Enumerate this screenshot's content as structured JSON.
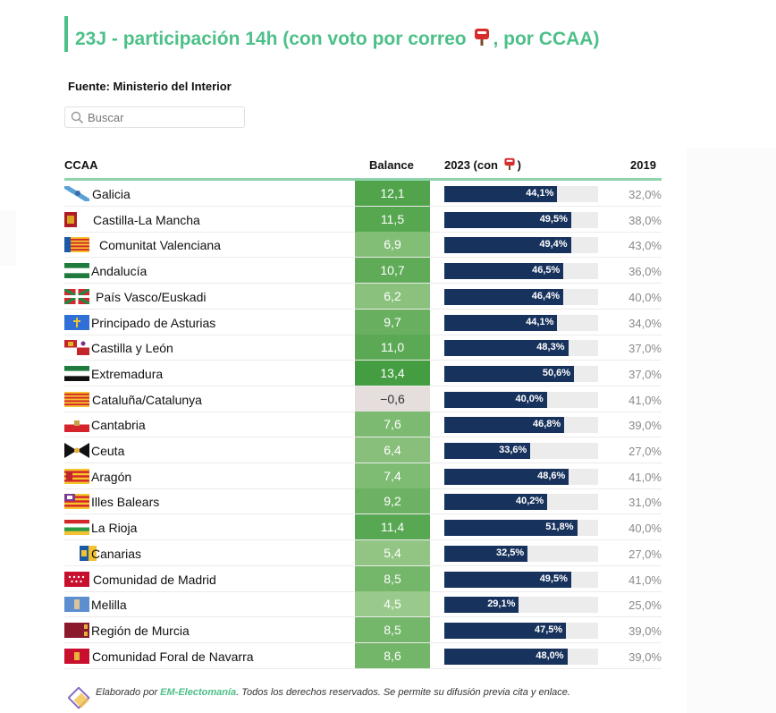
{
  "title": "23J - participación 14h (con voto por correo",
  "title_suffix": ", por CCAA)",
  "source": "Fuente: Ministerio del Interior",
  "search": {
    "placeholder": "Buscar"
  },
  "headers": {
    "ccaa": "CCAA",
    "balance": "Balance",
    "y2023": "2023 (con",
    "y2023_close": ")",
    "y2019": "2019"
  },
  "footer": {
    "prefix": "Elaborado por ",
    "brand": "EM-Electomanía",
    "suffix": ". Todos los derechos reservados. Se permite su difusión previa cita y enlace."
  },
  "colors": {
    "accent": "#4dc089",
    "bar": "#17325c",
    "track": "#ececec",
    "balance_high": "#3f9a3c",
    "balance_low": "#9fcc8f",
    "balance_negative": "#e6dddd"
  },
  "chart_data": {
    "type": "table",
    "columns": [
      "CCAA",
      "Balance",
      "2023 (con voto por correo)",
      "2019"
    ],
    "rows": [
      {
        "ccaa": "Galicia",
        "flag": "galicia",
        "balance": "12,1",
        "balance_value": 12.1,
        "y2023": "44,1%",
        "y2023_value": 44.1,
        "y2019": "32,0%"
      },
      {
        "ccaa": "Castilla-La Mancha",
        "flag": "castilla-la-mancha",
        "balance": "11,5",
        "balance_value": 11.5,
        "y2023": "49,5%",
        "y2023_value": 49.5,
        "y2019": "38,0%"
      },
      {
        "ccaa": "Comunitat Valenciana",
        "flag": "valencia",
        "balance": "6,9",
        "balance_value": 6.9,
        "y2023": "49,4%",
        "y2023_value": 49.4,
        "y2019": "43,0%"
      },
      {
        "ccaa": "Andalucía",
        "flag": "andalucia",
        "balance": "10,7",
        "balance_value": 10.7,
        "y2023": "46,5%",
        "y2023_value": 46.5,
        "y2019": "36,0%"
      },
      {
        "ccaa": "País Vasco/Euskadi",
        "flag": "euskadi",
        "balance": "6,2",
        "balance_value": 6.2,
        "y2023": "46,4%",
        "y2023_value": 46.4,
        "y2019": "40,0%"
      },
      {
        "ccaa": "Principado de Asturias",
        "flag": "asturias",
        "balance": "9,7",
        "balance_value": 9.7,
        "y2023": "44,1%",
        "y2023_value": 44.1,
        "y2019": "34,0%"
      },
      {
        "ccaa": "Castilla y León",
        "flag": "castilla-y-leon",
        "balance": "11,0",
        "balance_value": 11.0,
        "y2023": "48,3%",
        "y2023_value": 48.3,
        "y2019": "37,0%"
      },
      {
        "ccaa": "Extremadura",
        "flag": "extremadura",
        "balance": "13,4",
        "balance_value": 13.4,
        "y2023": "50,6%",
        "y2023_value": 50.6,
        "y2019": "37,0%"
      },
      {
        "ccaa": "Cataluña/Catalunya",
        "flag": "catalunya",
        "balance": "−0,6",
        "balance_value": -0.6,
        "y2023": "40,0%",
        "y2023_value": 40.0,
        "y2019": "41,0%"
      },
      {
        "ccaa": "Cantabria",
        "flag": "cantabria",
        "balance": "7,6",
        "balance_value": 7.6,
        "y2023": "46,8%",
        "y2023_value": 46.8,
        "y2019": "39,0%"
      },
      {
        "ccaa": "Ceuta",
        "flag": "ceuta",
        "balance": "6,4",
        "balance_value": 6.4,
        "y2023": "33,6%",
        "y2023_value": 33.6,
        "y2019": "27,0%"
      },
      {
        "ccaa": "Aragón",
        "flag": "aragon",
        "balance": "7,4",
        "balance_value": 7.4,
        "y2023": "48,6%",
        "y2023_value": 48.6,
        "y2019": "41,0%"
      },
      {
        "ccaa": "Illes Balears",
        "flag": "baleares",
        "balance": "9,2",
        "balance_value": 9.2,
        "y2023": "40,2%",
        "y2023_value": 40.2,
        "y2019": "31,0%"
      },
      {
        "ccaa": "La Rioja",
        "flag": "la-rioja",
        "balance": "11,4",
        "balance_value": 11.4,
        "y2023": "51,8%",
        "y2023_value": 51.8,
        "y2019": "40,0%"
      },
      {
        "ccaa": "Canarias",
        "flag": "canarias",
        "balance": "5,4",
        "balance_value": 5.4,
        "y2023": "32,5%",
        "y2023_value": 32.5,
        "y2019": "27,0%"
      },
      {
        "ccaa": "Comunidad de Madrid",
        "flag": "madrid",
        "balance": "8,5",
        "balance_value": 8.5,
        "y2023": "49,5%",
        "y2023_value": 49.5,
        "y2019": "41,0%"
      },
      {
        "ccaa": "Melilla",
        "flag": "melilla",
        "balance": "4,5",
        "balance_value": 4.5,
        "y2023": "29,1%",
        "y2023_value": 29.1,
        "y2019": "25,0%"
      },
      {
        "ccaa": "Región de Murcia",
        "flag": "murcia",
        "balance": "8,5",
        "balance_value": 8.5,
        "y2023": "47,5%",
        "y2023_value": 47.5,
        "y2019": "39,0%"
      },
      {
        "ccaa": "Comunidad Foral de Navarra",
        "flag": "navarra",
        "balance": "8,6",
        "balance_value": 8.6,
        "y2023": "48,0%",
        "y2023_value": 48.0,
        "y2019": "39,0%"
      }
    ],
    "y2023_range": [
      0,
      60
    ]
  }
}
